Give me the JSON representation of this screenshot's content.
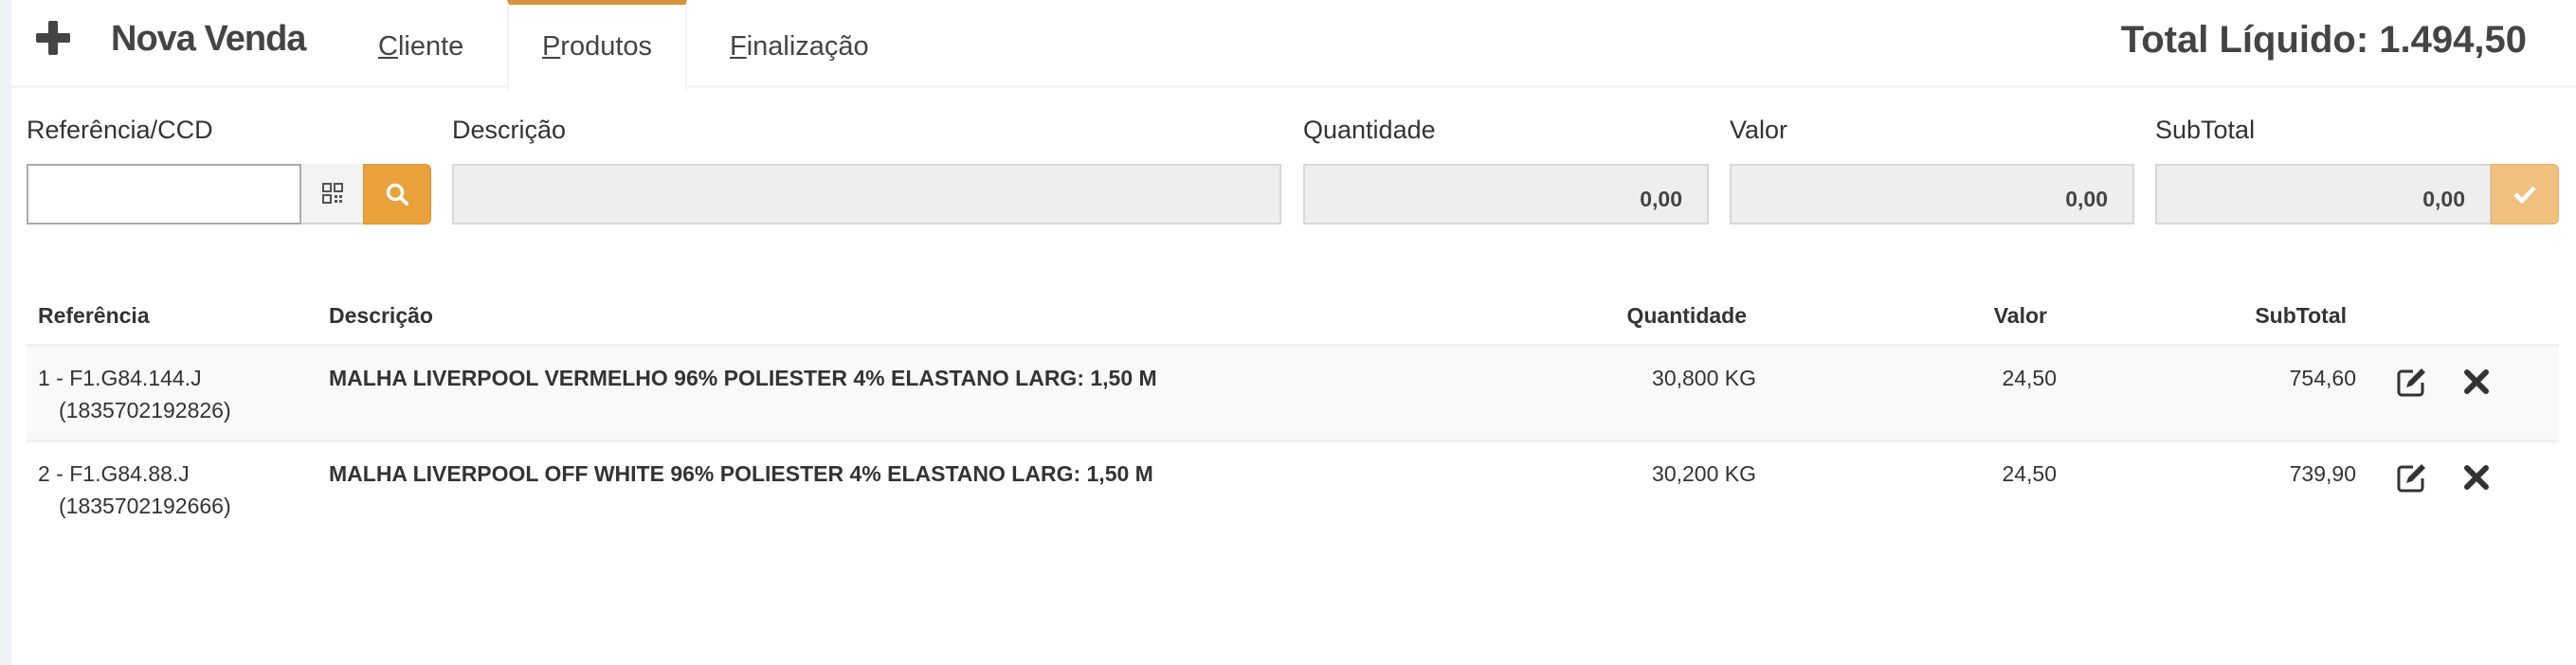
{
  "header": {
    "title": "Nova Venda",
    "total": "Total Líquido: 1.494,50",
    "tabs": [
      {
        "key": "C",
        "rest": "liente"
      },
      {
        "key": "P",
        "rest": "rodutos",
        "active": true
      },
      {
        "key": "F",
        "rest": "inalização"
      }
    ]
  },
  "form": {
    "ref_label": "Referência/CCD",
    "ref_value": "",
    "desc_label": "Descrição",
    "desc_value": "",
    "qty_label": "Quantidade",
    "qty_value": "0,00",
    "valor_label": "Valor",
    "valor_value": "0,00",
    "subtotal_label": "SubTotal",
    "subtotal_value": "0,00"
  },
  "table": {
    "headers": [
      "Referência",
      "Descrição",
      "Quantidade",
      "Valor",
      "SubTotal"
    ],
    "rows": [
      {
        "ref": "1 - F1.G84.144.J",
        "code": "(1835702192826)",
        "desc": "MALHA LIVERPOOL VERMELHO 96% POLIESTER 4% ELASTANO LARG: 1,50 M",
        "qty": "30,800 KG",
        "valor": "24,50",
        "subtotal": "754,60"
      },
      {
        "ref": "2 - F1.G84.88.J",
        "code": "(1835702192666)",
        "desc": "MALHA LIVERPOOL OFF WHITE 96% POLIESTER 4% ELASTANO LARG: 1,50 M",
        "qty": "30,200 KG",
        "valor": "24,50",
        "subtotal": "739,90"
      }
    ]
  },
  "colors": {
    "accent": "#e9a23b",
    "accent_light": "#f0c07f",
    "text": "#444444"
  },
  "icons": [
    "plus-icon",
    "qr-code-icon",
    "search-icon",
    "check-icon",
    "edit-icon",
    "delete-icon"
  ]
}
